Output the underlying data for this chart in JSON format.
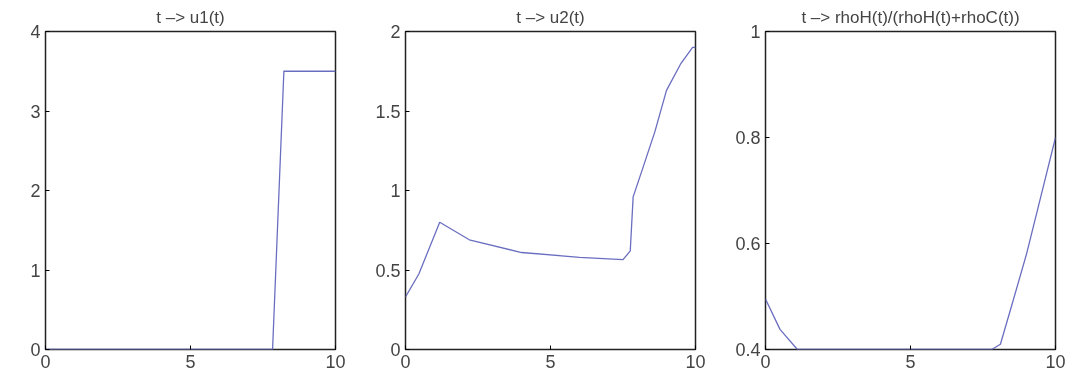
{
  "chart_data": [
    {
      "type": "line",
      "title": "t –> u1(t)",
      "x": [
        0,
        7.83,
        8.22,
        10
      ],
      "values": [
        0,
        0,
        3.5,
        3.5
      ],
      "color": "#6a6ec0",
      "xlim": [
        0,
        10
      ],
      "ylim": [
        0,
        4
      ],
      "xticks": [
        0,
        5,
        10
      ],
      "yticks": [
        0,
        1,
        2,
        3,
        4
      ],
      "grid": false
    },
    {
      "type": "line",
      "title": "t –> u2(t)",
      "x": [
        0,
        0.46,
        1.18,
        2.2,
        4,
        6,
        7.5,
        7.75,
        7.85,
        8.2,
        8.6,
        9,
        9.5,
        9.9,
        10
      ],
      "values": [
        0.33,
        0.475,
        0.8,
        0.69,
        0.61,
        0.58,
        0.565,
        0.62,
        0.96,
        1.15,
        1.37,
        1.63,
        1.8,
        1.9,
        1.9
      ],
      "color": "#6a6ec0",
      "xlim": [
        0,
        10
      ],
      "ylim": [
        0,
        2
      ],
      "xticks": [
        0,
        5,
        10
      ],
      "yticks": [
        0,
        0.5,
        1,
        1.5,
        2
      ],
      "grid": false
    },
    {
      "type": "line",
      "title": "t –> rhoH(t)/(rhoH(t)+rhoC(t))",
      "x": [
        0,
        0.5,
        1.1,
        7.8,
        8.1,
        8.5,
        9,
        9.5,
        10
      ],
      "values": [
        0.495,
        0.438,
        0.4,
        0.4,
        0.41,
        0.485,
        0.58,
        0.69,
        0.8
      ],
      "color": "#6a6ec0",
      "xlim": [
        0,
        10
      ],
      "ylim": [
        0.4,
        1
      ],
      "xticks": [
        0,
        5,
        10
      ],
      "yticks": [
        0.4,
        0.6,
        0.8,
        1
      ],
      "grid": false
    }
  ]
}
